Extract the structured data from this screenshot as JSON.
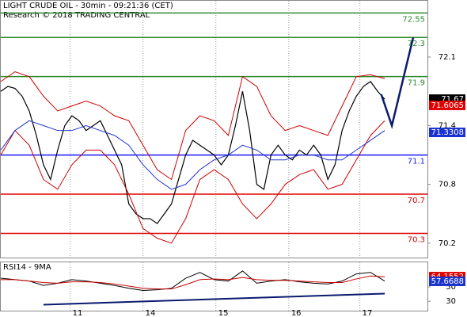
{
  "chart_data": [
    {
      "type": "line",
      "title": "LIGHT CRUDE OIL - 30min - 09:21:36 (CET)",
      "subtitle": "Research © 2018 TRADING CENTRAL",
      "xlim": [
        0,
        120
      ],
      "ylim": [
        70.053,
        72.674
      ],
      "yticks": [
        72.1,
        71.4,
        70.8,
        70.2
      ],
      "series": [
        {
          "name": "price",
          "color": "#000000",
          "width": 1.2,
          "x": [
            0,
            2,
            4,
            6,
            8,
            10,
            12,
            14,
            16,
            18,
            20,
            22,
            24,
            26,
            28,
            30,
            32,
            34,
            36,
            38,
            40,
            42,
            44,
            46,
            48,
            50,
            52,
            54,
            56,
            58,
            60,
            62,
            64,
            66,
            68,
            70,
            72,
            74,
            76,
            78,
            80,
            82,
            84,
            86,
            88,
            90,
            92,
            94,
            96,
            98,
            100,
            102,
            104,
            106,
            108
          ],
          "values": [
            71.75,
            71.8,
            71.78,
            71.7,
            71.55,
            71.3,
            71.0,
            70.85,
            71.15,
            71.4,
            71.5,
            71.45,
            71.35,
            71.4,
            71.45,
            71.3,
            71.15,
            71.0,
            70.6,
            70.5,
            70.45,
            70.45,
            70.4,
            70.5,
            70.6,
            70.85,
            71.1,
            71.25,
            71.2,
            71.15,
            71.1,
            71.0,
            71.1,
            71.4,
            71.75,
            71.35,
            70.8,
            70.75,
            71.1,
            71.2,
            71.1,
            71.05,
            71.15,
            71.1,
            71.2,
            71.1,
            70.85,
            71.0,
            71.35,
            71.55,
            71.7,
            71.8,
            71.85,
            71.75,
            71.67
          ]
        },
        {
          "name": "upper band",
          "color": "#cc0000",
          "width": 1,
          "x": [
            0,
            4,
            8,
            12,
            16,
            20,
            24,
            28,
            32,
            36,
            40,
            44,
            48,
            52,
            56,
            60,
            64,
            68,
            72,
            76,
            80,
            84,
            88,
            92,
            96,
            100,
            104,
            108
          ],
          "values": [
            71.85,
            71.95,
            71.9,
            71.7,
            71.55,
            71.6,
            71.65,
            71.6,
            71.5,
            71.45,
            71.2,
            70.95,
            70.85,
            71.35,
            71.5,
            71.45,
            71.3,
            71.9,
            71.8,
            71.5,
            71.35,
            71.4,
            71.35,
            71.3,
            71.6,
            71.9,
            71.92,
            71.88
          ]
        },
        {
          "name": "lower band",
          "color": "#cc0000",
          "width": 1,
          "x": [
            0,
            4,
            8,
            12,
            16,
            20,
            24,
            28,
            32,
            36,
            40,
            44,
            48,
            52,
            56,
            60,
            64,
            68,
            72,
            76,
            80,
            84,
            88,
            92,
            96,
            100,
            104,
            108
          ],
          "values": [
            71.1,
            71.35,
            71.2,
            70.85,
            70.75,
            71.0,
            71.15,
            71.15,
            71.0,
            70.7,
            70.35,
            70.25,
            70.2,
            70.45,
            70.85,
            70.95,
            70.85,
            70.6,
            70.45,
            70.6,
            70.8,
            70.9,
            70.95,
            70.75,
            70.8,
            71.05,
            71.3,
            71.45
          ]
        },
        {
          "name": "moving average",
          "color": "#2233cc",
          "width": 1,
          "x": [
            0,
            4,
            8,
            12,
            16,
            20,
            24,
            28,
            32,
            36,
            40,
            44,
            48,
            52,
            56,
            60,
            64,
            68,
            72,
            76,
            80,
            84,
            88,
            92,
            96,
            100,
            104,
            108
          ],
          "values": [
            71.15,
            71.35,
            71.45,
            71.4,
            71.35,
            71.35,
            71.4,
            71.35,
            71.3,
            71.2,
            71.0,
            70.85,
            70.75,
            70.8,
            70.95,
            71.05,
            71.1,
            71.2,
            71.15,
            71.05,
            71.05,
            71.1,
            71.1,
            71.05,
            71.05,
            71.15,
            71.25,
            71.35
          ]
        },
        {
          "name": "forecast",
          "color": "#0a1a6e",
          "width": 2.5,
          "x": [
            107,
            110,
            116
          ],
          "values": [
            71.72,
            71.4,
            72.3
          ]
        }
      ],
      "levels": [
        {
          "value": 72.55,
          "color": "#2e8b2e"
        },
        {
          "value": 72.3,
          "color": "#2e8b2e"
        },
        {
          "value": 71.9,
          "color": "#2e8b2e"
        },
        {
          "value": 71.1,
          "color": "#1a1aff"
        },
        {
          "value": 70.7,
          "color": "#e00000"
        },
        {
          "value": 70.3,
          "color": "#e00000"
        }
      ],
      "markers": [
        {
          "value": 71.67,
          "color": "#000000"
        },
        {
          "value": 71.6065,
          "color": "#e00000"
        },
        {
          "value": 71.3308,
          "color": "#1a33cc"
        }
      ]
    },
    {
      "type": "line",
      "title": "RSI14 - 9MA",
      "xlim": [
        0,
        120
      ],
      "ylim": [
        17,
        84
      ],
      "yticks": [
        50,
        30
      ],
      "xticks": [
        {
          "value": 19.5,
          "label": "11"
        },
        {
          "value": 40,
          "label": "14"
        },
        {
          "value": 60.5,
          "label": "15"
        },
        {
          "value": 81,
          "label": "16"
        },
        {
          "value": 101,
          "label": "17"
        }
      ],
      "series": [
        {
          "name": "RSI",
          "color": "#000000",
          "width": 1,
          "x": [
            0,
            4,
            8,
            12,
            16,
            20,
            24,
            28,
            32,
            36,
            40,
            44,
            48,
            52,
            56,
            60,
            64,
            68,
            72,
            76,
            80,
            84,
            88,
            92,
            96,
            100,
            104,
            108
          ],
          "values": [
            62,
            60,
            58,
            52,
            55,
            60,
            58,
            55,
            52,
            48,
            45,
            46,
            48,
            62,
            70,
            60,
            58,
            72,
            55,
            58,
            60,
            57,
            55,
            54,
            58,
            68,
            70,
            58
          ]
        },
        {
          "name": "MA",
          "color": "#cc0000",
          "width": 1,
          "x": [
            0,
            4,
            8,
            12,
            16,
            20,
            24,
            28,
            32,
            36,
            40,
            44,
            48,
            52,
            56,
            60,
            64,
            68,
            72,
            76,
            80,
            84,
            88,
            92,
            96,
            100,
            104,
            108
          ],
          "values": [
            60,
            60,
            58,
            56,
            55,
            57,
            57,
            56,
            54,
            51,
            48,
            47,
            47,
            53,
            60,
            61,
            60,
            63,
            60,
            59,
            59,
            58,
            57,
            56,
            56,
            61,
            65,
            64
          ]
        },
        {
          "name": "trendline",
          "color": "#0a1a6e",
          "width": 2,
          "x": [
            12,
            108
          ],
          "values": [
            25.3,
            40.6
          ]
        }
      ],
      "markers": [
        {
          "value": 64.1552,
          "color": "#e00000"
        },
        {
          "value": 57.6688,
          "color": "#1a33cc"
        }
      ]
    }
  ]
}
